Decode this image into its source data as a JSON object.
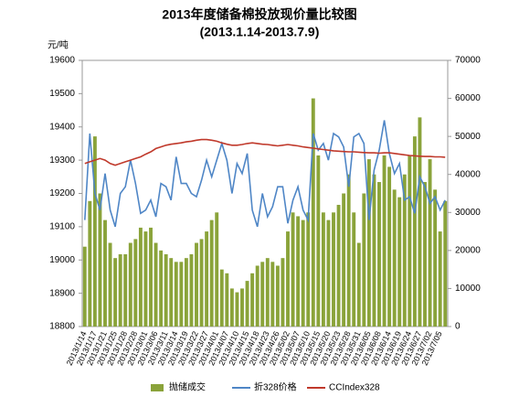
{
  "chart_data": {
    "type": "bar-line",
    "title": "2013年度储备棉投放现价量比较图",
    "subtitle": "(2013.1.14-2013.7.9)",
    "y_label": "元/吨",
    "categories": [
      "2013/1/14",
      null,
      "2013/1/17",
      null,
      "2013/1/21",
      null,
      "2013/1/25",
      null,
      "2013/1/28",
      null,
      "2013/2/28",
      null,
      "2013/3/01",
      null,
      "2013/3/06",
      null,
      "2013/3/11",
      null,
      "2013/3/14",
      null,
      "2013/3/19",
      null,
      "2013/3/22",
      null,
      "2013/3/27",
      null,
      "2013/4/01",
      null,
      "2013/4/07",
      null,
      "2013/4/10",
      null,
      "2013/4/15",
      null,
      "2013/4/18",
      null,
      "2013/4/23",
      null,
      "2013/4/26",
      null,
      "2013/5/02",
      null,
      "2013/5/07",
      null,
      "2013/5/10",
      null,
      "2013/5/15",
      null,
      "2013/5/20",
      null,
      "2013/5/23",
      null,
      "2013/5/28",
      null,
      "2013/5/31",
      null,
      "2013/6/05",
      null,
      "2013/6/08",
      null,
      "2013/6/14",
      null,
      "2013/6/19",
      null,
      "2013/6/24",
      null,
      "2013/6/27",
      null,
      "2013/7/02",
      null,
      "2013/7/05",
      null
    ],
    "series": [
      {
        "name": "抛储成交",
        "kind": "bar",
        "axis": "y2",
        "color": "#8aa33a",
        "values": [
          21000,
          33000,
          50000,
          35000,
          28000,
          22000,
          18000,
          19000,
          19000,
          22000,
          23000,
          26000,
          25000,
          26000,
          22000,
          20000,
          19000,
          18000,
          17000,
          17000,
          18000,
          19000,
          22000,
          23000,
          25000,
          28000,
          30000,
          15000,
          14000,
          10000,
          9000,
          10000,
          12000,
          14000,
          16000,
          17000,
          18000,
          17000,
          16000,
          18000,
          25000,
          30000,
          29000,
          28000,
          30000,
          60000,
          45000,
          30000,
          28000,
          30000,
          32000,
          35000,
          40000,
          30000,
          22000,
          35000,
          44000,
          40000,
          38000,
          45000,
          42000,
          36000,
          34000,
          40000,
          45000,
          50000,
          55000,
          38000,
          44000,
          36000,
          25000,
          33000
        ]
      },
      {
        "name": "折328价格",
        "kind": "line",
        "color": "#4f86c6",
        "values": [
          19120,
          19380,
          19200,
          19150,
          19260,
          19150,
          19100,
          19200,
          19220,
          19300,
          19230,
          19140,
          19150,
          19180,
          19130,
          19230,
          19220,
          19180,
          19310,
          19230,
          19230,
          19200,
          19190,
          19240,
          19300,
          19250,
          19300,
          19350,
          19300,
          19200,
          19290,
          19260,
          19320,
          19150,
          19100,
          19200,
          19130,
          19160,
          19220,
          19220,
          19110,
          19180,
          19220,
          19150,
          19120,
          19380,
          19330,
          19350,
          19300,
          19380,
          19370,
          19340,
          19220,
          19370,
          19380,
          19350,
          19120,
          19270,
          19330,
          19420,
          19320,
          19260,
          19290,
          19180,
          19190,
          19140,
          19250,
          19220,
          19170,
          19190,
          19150,
          19180
        ]
      },
      {
        "name": "CCIndex328",
        "kind": "line",
        "color": "#c0392b",
        "values": [
          19290,
          19295,
          19300,
          19305,
          19300,
          19290,
          19285,
          19290,
          19295,
          19300,
          19305,
          19310,
          19318,
          19325,
          19335,
          19340,
          19345,
          19348,
          19350,
          19352,
          19355,
          19357,
          19360,
          19362,
          19362,
          19360,
          19357,
          19352,
          19348,
          19345,
          19345,
          19347,
          19350,
          19352,
          19350,
          19348,
          19347,
          19345,
          19343,
          19345,
          19347,
          19345,
          19343,
          19340,
          19338,
          19336,
          19334,
          19332,
          19330,
          19328,
          19327,
          19326,
          19325,
          19325,
          19324,
          19323,
          19322,
          19322,
          19321,
          19322,
          19322,
          19320,
          19318,
          19316,
          19314,
          19313,
          19312,
          19311,
          19311,
          19310,
          19310,
          19309
        ]
      }
    ],
    "ylim": [
      18800,
      19600
    ],
    "yticks": [
      18800,
      18900,
      19000,
      19100,
      19200,
      19300,
      19400,
      19500,
      19600
    ],
    "y2lim": [
      0,
      70000
    ],
    "y2ticks": [
      0,
      10000,
      20000,
      30000,
      40000,
      50000,
      60000,
      70000
    ]
  }
}
